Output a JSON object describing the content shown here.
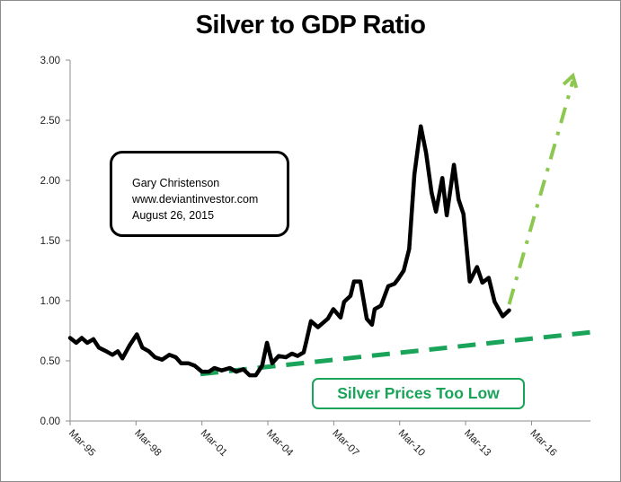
{
  "chart_data": {
    "type": "line",
    "title": "Silver to GDP Ratio",
    "xlabel": "",
    "ylabel": "",
    "ylim": [
      0,
      3.0
    ],
    "xlim": [
      1995.17,
      2019.0
    ],
    "grid": false,
    "yticks": [
      {
        "value": 0.0,
        "label": "0.00"
      },
      {
        "value": 0.5,
        "label": "0.50"
      },
      {
        "value": 1.0,
        "label": "1.00"
      },
      {
        "value": 1.5,
        "label": "1.50"
      },
      {
        "value": 2.0,
        "label": "2.00"
      },
      {
        "value": 2.5,
        "label": "2.50"
      },
      {
        "value": 3.0,
        "label": "3.00"
      }
    ],
    "xticks": [
      {
        "value": 1995.17,
        "label": "Mar-95"
      },
      {
        "value": 1998.17,
        "label": "Mar-98"
      },
      {
        "value": 2001.17,
        "label": "Mar-01"
      },
      {
        "value": 2004.17,
        "label": "Mar-04"
      },
      {
        "value": 2007.17,
        "label": "Mar-07"
      },
      {
        "value": 2010.17,
        "label": "Mar-10"
      },
      {
        "value": 2013.17,
        "label": "Mar-13"
      },
      {
        "value": 2016.17,
        "label": "Mar-16"
      }
    ],
    "series": [
      {
        "name": "Silver to GDP Ratio",
        "color": "#000000",
        "x": [
          1995.17,
          1995.45,
          1995.7,
          1995.95,
          1996.23,
          1996.48,
          1996.81,
          1997.1,
          1997.34,
          1997.55,
          1997.88,
          1998.21,
          1998.46,
          1998.75,
          1999.03,
          1999.36,
          1999.69,
          1999.98,
          2000.22,
          2000.55,
          2000.84,
          2001.17,
          2001.49,
          2001.74,
          2002.07,
          2002.44,
          2002.73,
          2003.05,
          2003.34,
          2003.62,
          2003.91,
          2004.13,
          2004.37,
          2004.66,
          2004.99,
          2005.27,
          2005.52,
          2005.8,
          2005.92,
          2006.13,
          2006.45,
          2006.9,
          2007.15,
          2007.48,
          2007.64,
          2007.93,
          2008.09,
          2008.38,
          2008.67,
          2008.91,
          2009.03,
          2009.32,
          2009.65,
          2009.93,
          2010.1,
          2010.35,
          2010.6,
          2010.84,
          2011.13,
          2011.37,
          2011.62,
          2011.82,
          2012.11,
          2012.31,
          2012.64,
          2012.85,
          2013.07,
          2013.36,
          2013.69,
          2013.93,
          2014.22,
          2014.49,
          2014.86,
          2015.15
        ],
        "values": [
          0.69,
          0.65,
          0.69,
          0.65,
          0.68,
          0.61,
          0.58,
          0.55,
          0.58,
          0.52,
          0.63,
          0.72,
          0.61,
          0.58,
          0.53,
          0.51,
          0.55,
          0.53,
          0.48,
          0.48,
          0.46,
          0.41,
          0.41,
          0.44,
          0.42,
          0.44,
          0.41,
          0.43,
          0.38,
          0.38,
          0.46,
          0.65,
          0.48,
          0.54,
          0.53,
          0.56,
          0.54,
          0.57,
          0.66,
          0.83,
          0.78,
          0.85,
          0.93,
          0.86,
          0.99,
          1.04,
          1.16,
          1.16,
          0.85,
          0.8,
          0.93,
          0.96,
          1.12,
          1.14,
          1.18,
          1.25,
          1.43,
          2.05,
          2.45,
          2.23,
          1.9,
          1.74,
          2.02,
          1.71,
          2.13,
          1.84,
          1.72,
          1.16,
          1.28,
          1.15,
          1.19,
          0.99,
          0.87,
          0.92
        ]
      }
    ],
    "annotations": [
      {
        "type": "trend-line",
        "name": "Low trend (dashed)",
        "color": "#1aa45a",
        "from": {
          "x": 2001.1,
          "y": 0.39
        },
        "to": {
          "x": 2019.0,
          "y": 0.74
        }
      },
      {
        "type": "arrow",
        "name": "Projected rise (dash-dot arrow)",
        "color": "#8cc850",
        "from": {
          "x": 2015.15,
          "y": 0.97
        },
        "to": {
          "x": 2018.05,
          "y": 2.87
        }
      },
      {
        "type": "label",
        "text": "Silver Prices Too Low",
        "color": "#1aa45a"
      }
    ]
  },
  "info_box": {
    "lines": [
      "Gary Christenson",
      "www.deviantinvestor.com",
      "August 26, 2015"
    ]
  },
  "callout": {
    "label": "Silver Prices Too Low"
  },
  "colors": {
    "line": "#000000",
    "trend_green": "#1aa45a",
    "arrow_green": "#8cc850",
    "axis": "#8c8c8c"
  }
}
